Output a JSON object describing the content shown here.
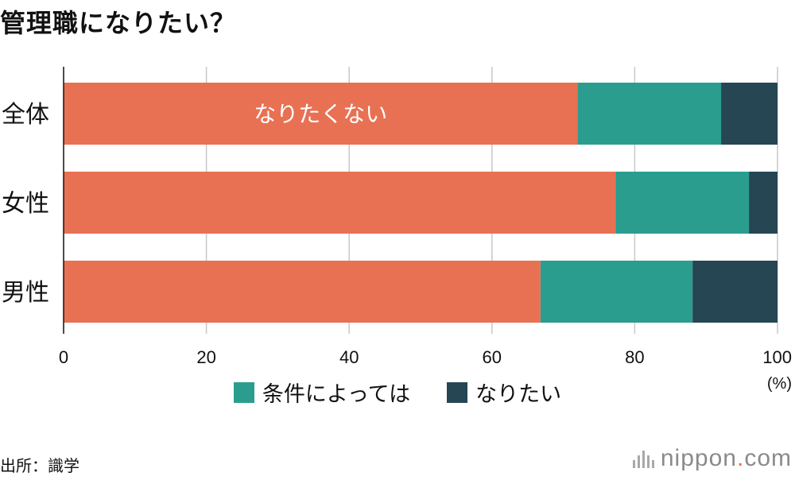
{
  "header": {
    "title": "管理職になりたい？"
  },
  "chart_data": {
    "type": "bar",
    "orientation": "horizontal",
    "stacked": true,
    "categories": [
      "全体",
      "女性",
      "男性"
    ],
    "series": [
      {
        "name": "なりたくない",
        "values": [
          72,
          77.3,
          66.8
        ],
        "color": "#e87153"
      },
      {
        "name": "条件によっては",
        "values": [
          20.1,
          18.7,
          21.3
        ],
        "color": "#2a9d8f"
      },
      {
        "name": "なりたい",
        "values": [
          7.9,
          4.0,
          11.9
        ],
        "color": "#264653"
      }
    ],
    "xlim": [
      0,
      100
    ],
    "xticks": [
      "0",
      "20",
      "40",
      "60",
      "80",
      "100"
    ],
    "x_unit": "(%)",
    "inline_label": "なりたくない",
    "grid": true,
    "legend_position": "bottom"
  },
  "legend": [
    {
      "label": "条件によっては",
      "color": "#2a9d8f"
    },
    {
      "label": "なりたい",
      "color": "#264653"
    }
  ],
  "source": "出所：識学",
  "logo": {
    "text": "nippon",
    "dot": ".",
    "suffix": "com"
  }
}
